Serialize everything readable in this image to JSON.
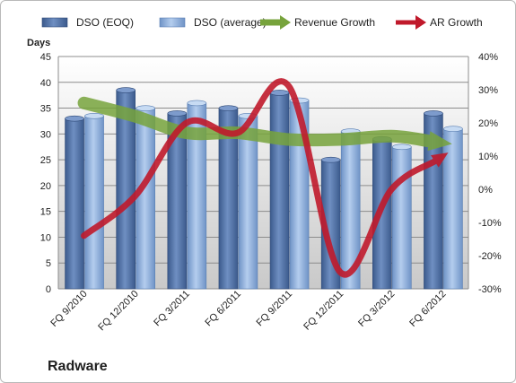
{
  "chart_data": {
    "type": "bar",
    "title": "",
    "brand": "Radware",
    "ylabel": "Days",
    "y2label": "",
    "ylim": [
      0,
      45
    ],
    "y2lim": [
      -30,
      40
    ],
    "grid": true,
    "legend_position": "top",
    "categories": [
      "FQ 9/2010",
      "FQ 12/2010",
      "FQ 3/2011",
      "FQ 6/2011",
      "FQ 9/2011",
      "FQ 12/2011",
      "FQ 3/2012",
      "FQ 6/2012"
    ],
    "y_ticks": [
      "0",
      "5",
      "10",
      "15",
      "20",
      "25",
      "30",
      "35",
      "40",
      "45"
    ],
    "y2_ticks": [
      "-30%",
      "-20%",
      "-10%",
      "0%",
      "10%",
      "20%",
      "30%",
      "40%"
    ],
    "series": [
      {
        "name": "DSO (EOQ)",
        "kind": "bar",
        "axis": "left",
        "color": "#4f6fa3",
        "values": [
          33.5,
          39,
          34.5,
          35.5,
          38.5,
          25.5,
          29.5,
          34.5
        ]
      },
      {
        "name": "DSO (average)",
        "kind": "bar",
        "axis": "left",
        "color": "#8fb0dc",
        "values": [
          34,
          35.5,
          36.5,
          34,
          37,
          31,
          28,
          31.5
        ]
      },
      {
        "name": "Revenue Growth",
        "kind": "arrow",
        "axis": "right",
        "color": "#77a33c",
        "values": [
          26,
          22,
          17,
          17,
          15,
          15,
          16,
          14
        ]
      },
      {
        "name": "AR Growth",
        "kind": "arrow",
        "axis": "right",
        "color": "#c0192b",
        "values": [
          -14,
          -2,
          20,
          17,
          31,
          -25,
          0,
          10
        ]
      }
    ]
  }
}
